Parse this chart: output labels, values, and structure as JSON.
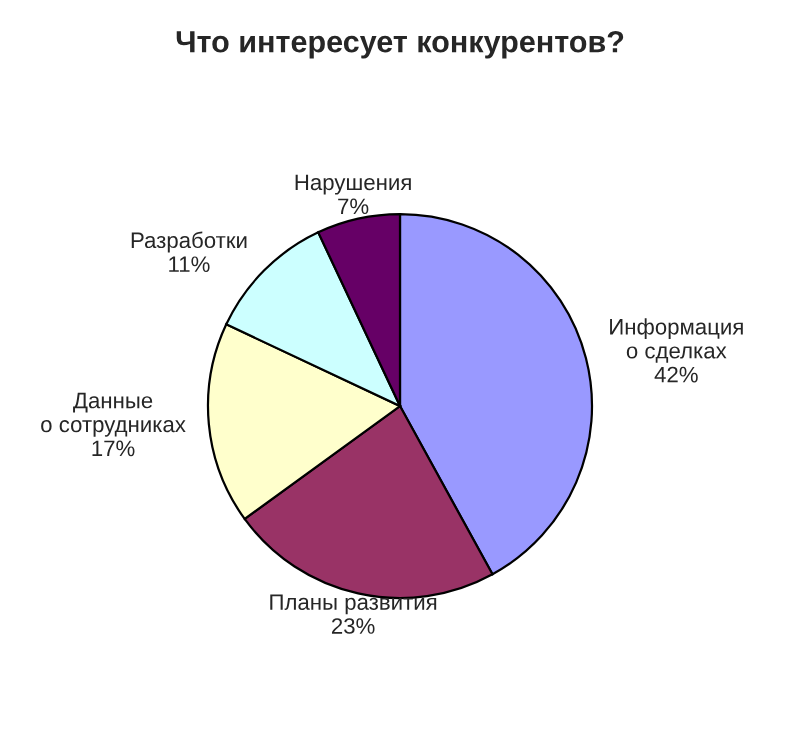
{
  "chart_data": {
    "type": "pie",
    "title": "Что интересует конкурентов?",
    "categories": [
      "Информация\nо сделках",
      "Планы развития",
      "Данные\nо сотрудниках",
      "Разработки",
      "Нарушения"
    ],
    "values": [
      42,
      23,
      17,
      11,
      7
    ],
    "value_labels": [
      "42%",
      "23%",
      "17%",
      "11%",
      "7%"
    ],
    "colors": [
      "#9999ff",
      "#993366",
      "#ffffcc",
      "#ccffff",
      "#660066"
    ]
  }
}
